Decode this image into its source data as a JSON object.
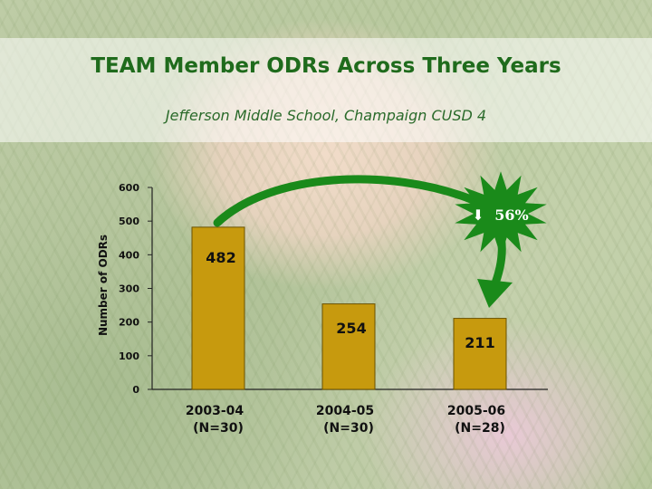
{
  "slide": {
    "title": "TEAM Member ODRs Across Three Years",
    "subtitle": "Jefferson Middle School, Champaign CUSD 4"
  },
  "callout": {
    "arrow_glyph": "⬇",
    "text": "56%",
    "color": "#1a8a1a"
  },
  "colors": {
    "bar_fill": "#c79a0e",
    "bar_stroke": "#6b5200",
    "arrow_green": "#1a8a1a",
    "title_green": "#1f6b1c"
  },
  "chart_data": {
    "type": "bar",
    "title": "TEAM Member ODRs Across Three Years",
    "subtitle": "Jefferson Middle School, Champaign CUSD 4",
    "ylabel": "Number of ODRs",
    "xlabel": "",
    "ylim": [
      0,
      600
    ],
    "yticks": [
      0,
      100,
      200,
      300,
      400,
      500,
      600
    ],
    "grid": false,
    "categories": [
      {
        "line1": "2003-04",
        "line2": "(N=30)"
      },
      {
        "line1": "2004-05",
        "line2": "(N=30)"
      },
      {
        "line1": "2005-06",
        "line2": "(N=28)"
      }
    ],
    "values": [
      482,
      254,
      211
    ],
    "data_labels": [
      "482",
      "254",
      "211"
    ]
  }
}
